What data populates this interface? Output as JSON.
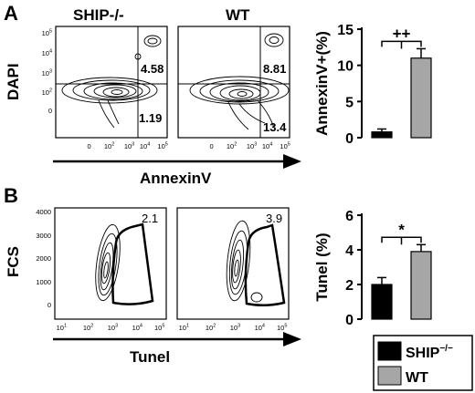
{
  "panels": {
    "A": {
      "letter": "A",
      "flow": {
        "y_label": "DAPI",
        "x_label": "AnnexinV",
        "plots": [
          {
            "title": "SHIP-/-",
            "upper_right": "4.58",
            "lower_right": "1.19"
          },
          {
            "title": "WT",
            "upper_right": "8.81",
            "lower_right": "13.4"
          }
        ],
        "x_ticks": [
          "0",
          "10|2",
          "10|3",
          "10|4",
          "10|5"
        ],
        "y_ticks": [
          "10|5",
          "10|4",
          "10|3",
          "10|2",
          "0"
        ]
      }
    },
    "B": {
      "letter": "B",
      "flow": {
        "y_label": "FCS",
        "x_label": "Tunel",
        "plots": [
          {
            "gate_value": "2.1"
          },
          {
            "gate_value": "3.9"
          }
        ],
        "x_ticks": [
          "10|1",
          "10|2",
          "10|3",
          "10|4",
          "10|5"
        ],
        "y_ticks": [
          "4000",
          "3000",
          "2000",
          "1000",
          "0"
        ]
      }
    }
  },
  "chart_data": [
    {
      "type": "bar",
      "panel": "A",
      "categories": [
        "SHIP-/-",
        "WT"
      ],
      "values": [
        0.8,
        11.0
      ],
      "errors": [
        0.4,
        1.3
      ],
      "ylabel": "AnnexinV+(%)",
      "ylim": [
        0,
        15
      ],
      "yticks": [
        0,
        5,
        10,
        15
      ],
      "significance": "++",
      "colors": [
        "#000000",
        "#a6a6a6"
      ]
    },
    {
      "type": "bar",
      "panel": "B",
      "categories": [
        "SHIP-/-",
        "WT"
      ],
      "values": [
        2.0,
        3.9
      ],
      "errors": [
        0.4,
        0.4
      ],
      "ylabel": "Tunel  (%)",
      "ylim": [
        0,
        6
      ],
      "yticks": [
        0,
        2,
        4,
        6
      ],
      "significance": "*",
      "colors": [
        "#000000",
        "#a6a6a6"
      ]
    }
  ],
  "legend": {
    "items": [
      {
        "label": "SHIP",
        "sup": "−/−",
        "color": "#000000"
      },
      {
        "label": "WT",
        "sup": "",
        "color": "#a6a6a6"
      }
    ]
  }
}
